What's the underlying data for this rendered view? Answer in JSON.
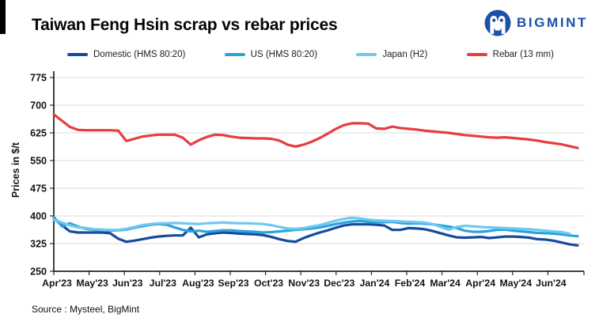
{
  "header": {
    "title": "Taiwan Feng Hsin scrap vs rebar prices",
    "brand": "BIGMINT"
  },
  "footer": {
    "source": "Source : Mysteel, BigMint"
  },
  "brand_color": "#1d50a8",
  "chart_data": {
    "type": "line",
    "title": "Taiwan Feng Hsin scrap vs rebar prices",
    "xlabel": "",
    "ylabel": "Prices in $/t",
    "ylim": [
      250,
      775
    ],
    "yticks": [
      775,
      700,
      625,
      550,
      475,
      400,
      325,
      250
    ],
    "grid": "horizontal",
    "legend_position": "top",
    "categories": [
      "Apr'23",
      "May'23",
      "Jun'23",
      "Jul'23",
      "Aug'23",
      "Sep'23",
      "Oct'23",
      "Nov'23",
      "Dec'23",
      "Jan'24",
      "Feb'24",
      "Mar'24",
      "Apr'24",
      "May'24",
      "Jun'24"
    ],
    "x_unit": "weekly points, Apr 2023 - early Jul 2024",
    "series": [
      {
        "name": "Domestic (HMS 80:20)",
        "color": "#174a9c",
        "values": [
          393,
          375,
          358,
          355,
          355,
          355,
          355,
          353,
          338,
          330,
          333,
          337,
          341,
          344,
          346,
          347,
          347,
          368,
          342,
          350,
          353,
          355,
          354,
          352,
          351,
          350,
          348,
          343,
          337,
          332,
          330,
          340,
          348,
          355,
          361,
          368,
          374,
          377,
          377,
          377,
          376,
          374,
          362,
          362,
          367,
          366,
          364,
          359,
          353,
          347,
          342,
          341,
          342,
          343,
          340,
          342,
          344,
          344,
          343,
          341,
          337,
          336,
          333,
          328,
          323,
          320
        ]
      },
      {
        "name": "US (HMS 80:20)",
        "color": "#29a3dd",
        "values": [
          397,
          372,
          380,
          371,
          365,
          362,
          361,
          360,
          361,
          363,
          368,
          372,
          376,
          378,
          376,
          369,
          362,
          358,
          360,
          357,
          359,
          361,
          361,
          359,
          358,
          357,
          355,
          356,
          358,
          360,
          362,
          364,
          366,
          369,
          373,
          378,
          382,
          385,
          386,
          384,
          382,
          383,
          384,
          381,
          379,
          380,
          379,
          377,
          374,
          371,
          367,
          360,
          357,
          357,
          359,
          362,
          363,
          360,
          358,
          356,
          354,
          353,
          352,
          350,
          347,
          345
        ]
      },
      {
        "name": "Japan (H2)",
        "color": "#6fc8ef",
        "values": [
          390,
          382,
          374,
          369,
          367,
          364,
          363,
          362,
          362,
          365,
          370,
          375,
          378,
          380,
          380,
          381,
          380,
          379,
          378,
          380,
          381,
          382,
          381,
          380,
          380,
          379,
          378,
          375,
          370,
          366,
          365,
          367,
          371,
          375,
          381,
          387,
          392,
          395,
          393,
          390,
          388,
          387,
          386,
          385,
          384,
          383,
          382,
          378,
          370,
          363,
          370,
          373,
          372,
          370,
          369,
          368,
          367,
          366,
          365,
          364,
          362,
          360,
          358,
          356,
          352,
          null
        ]
      },
      {
        "name": "Rebar (13 mm)",
        "color": "#e63d3d",
        "values": [
          675,
          658,
          641,
          633,
          632,
          632,
          632,
          632,
          631,
          603,
          609,
          615,
          618,
          620,
          620,
          620,
          612,
          593,
          605,
          614,
          620,
          619,
          615,
          612,
          611,
          610,
          610,
          609,
          604,
          593,
          588,
          593,
          601,
          611,
          623,
          636,
          646,
          651,
          651,
          650,
          637,
          636,
          642,
          638,
          636,
          634,
          631,
          629,
          627,
          625,
          622,
          619,
          617,
          615,
          613,
          612,
          613,
          611,
          609,
          607,
          604,
          600,
          597,
          594,
          589,
          584
        ]
      }
    ]
  }
}
